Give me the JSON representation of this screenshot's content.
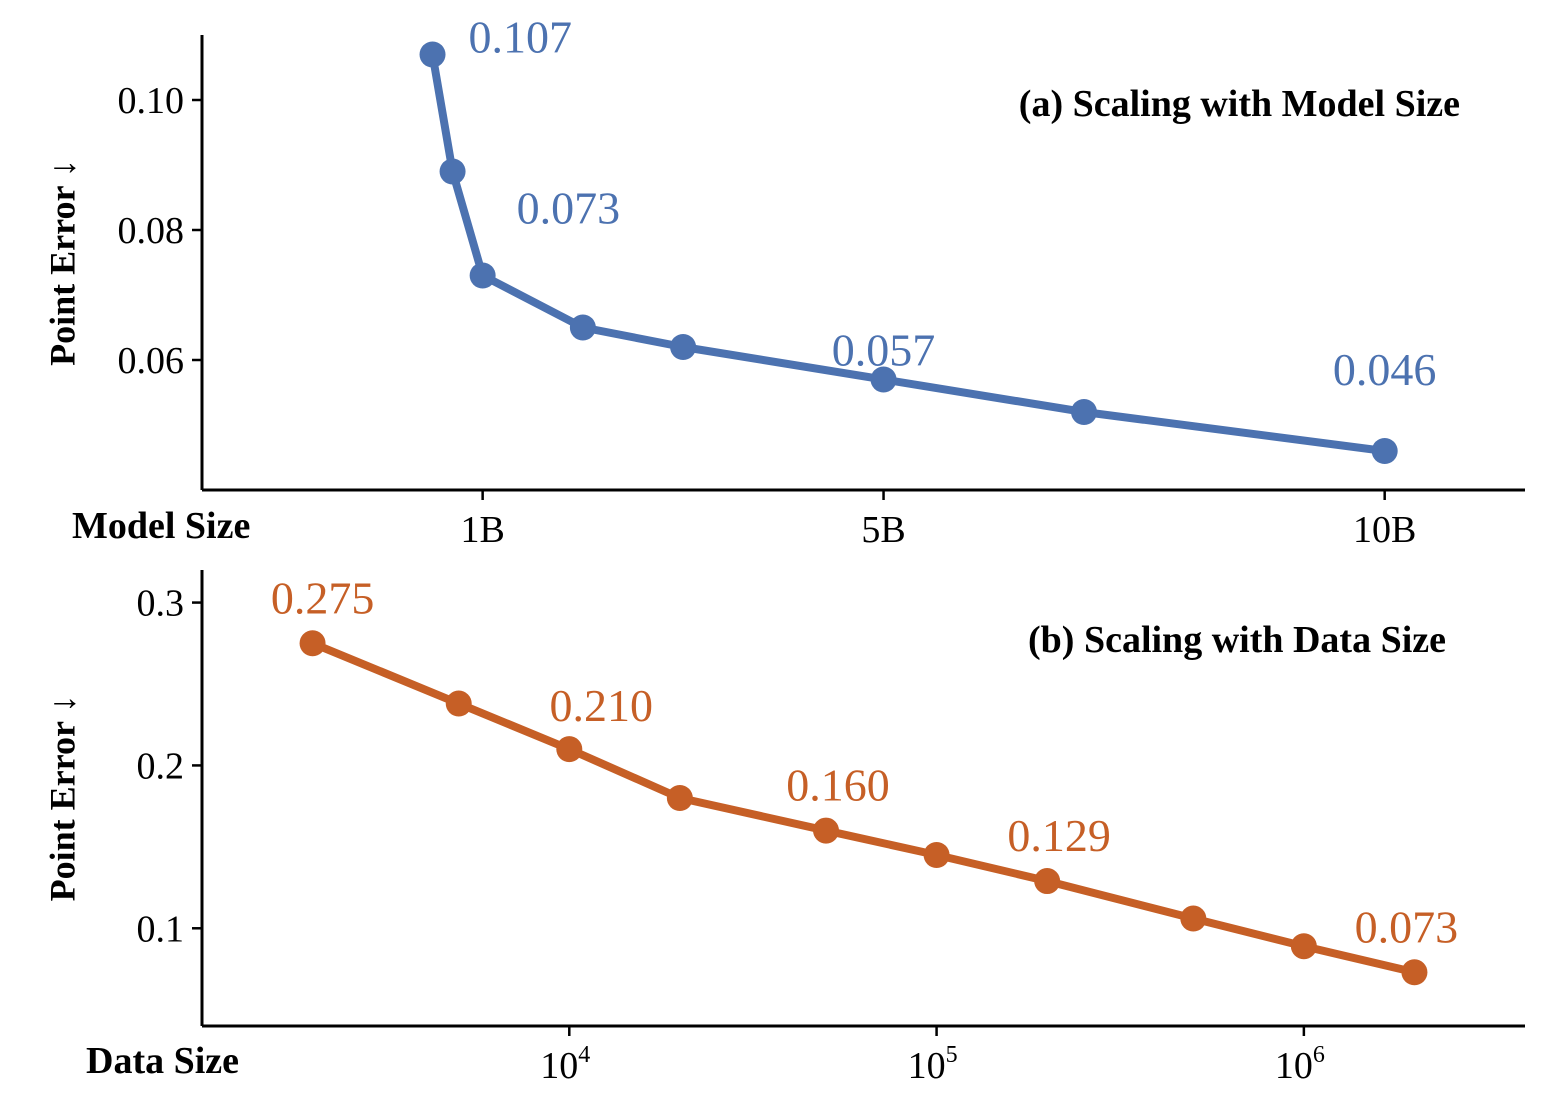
{
  "chart_data": [
    {
      "type": "line",
      "title": "(a) Scaling with Model Size",
      "xlabel": "Model Size",
      "ylabel": "Point Error ↓",
      "color": "#4c72b0",
      "xscale": "linear",
      "xlim": [
        -1.8,
        11.4
      ],
      "ylim": [
        0.04,
        0.11
      ],
      "x_ticks": [
        {
          "value": 1,
          "label": "1B"
        },
        {
          "value": 5,
          "label": "5B"
        },
        {
          "value": 10,
          "label": "10B"
        }
      ],
      "y_ticks": [
        {
          "value": 0.06,
          "label": "0.06"
        },
        {
          "value": 0.08,
          "label": "0.08"
        },
        {
          "value": 0.1,
          "label": "0.10"
        }
      ],
      "series": [
        {
          "x": [
            0.5,
            0.7,
            1.0,
            2.0,
            3.0,
            5.0,
            7.0,
            10.0
          ],
          "values": [
            0.107,
            0.089,
            0.073,
            0.065,
            0.062,
            0.057,
            0.052,
            0.046
          ]
        }
      ],
      "annotations": [
        {
          "index": 0,
          "text": "0.107"
        },
        {
          "index": 2,
          "text": "0.073"
        },
        {
          "index": 5,
          "text": "0.057"
        },
        {
          "index": 7,
          "text": "0.046"
        }
      ],
      "grid": false
    },
    {
      "type": "line",
      "title": "(b) Scaling with Data Size",
      "xlabel": "Data Size",
      "ylabel": "Point Error ↓",
      "color": "#c65f26",
      "xscale": "log",
      "xlim": [
        1000,
        4000000
      ],
      "ylim": [
        0.04,
        0.32
      ],
      "x_ticks": [
        {
          "value": 10000,
          "base": "10",
          "exp": "4"
        },
        {
          "value": 100000,
          "base": "10",
          "exp": "5"
        },
        {
          "value": 1000000,
          "base": "10",
          "exp": "6"
        }
      ],
      "y_ticks": [
        {
          "value": 0.1,
          "label": "0.1"
        },
        {
          "value": 0.2,
          "label": "0.2"
        },
        {
          "value": 0.3,
          "label": "0.3"
        }
      ],
      "series": [
        {
          "x": [
            2000,
            5000,
            10000,
            20000,
            50000,
            100000,
            200000,
            500000,
            1000000,
            2000000
          ],
          "values": [
            0.275,
            0.238,
            0.21,
            0.18,
            0.16,
            0.145,
            0.129,
            0.106,
            0.089,
            0.073
          ]
        }
      ],
      "annotations": [
        {
          "index": 0,
          "text": "0.275"
        },
        {
          "index": 2,
          "text": "0.210"
        },
        {
          "index": 4,
          "text": "0.160"
        },
        {
          "index": 6,
          "text": "0.129"
        },
        {
          "index": 9,
          "text": "0.073"
        }
      ],
      "grid": false
    }
  ]
}
